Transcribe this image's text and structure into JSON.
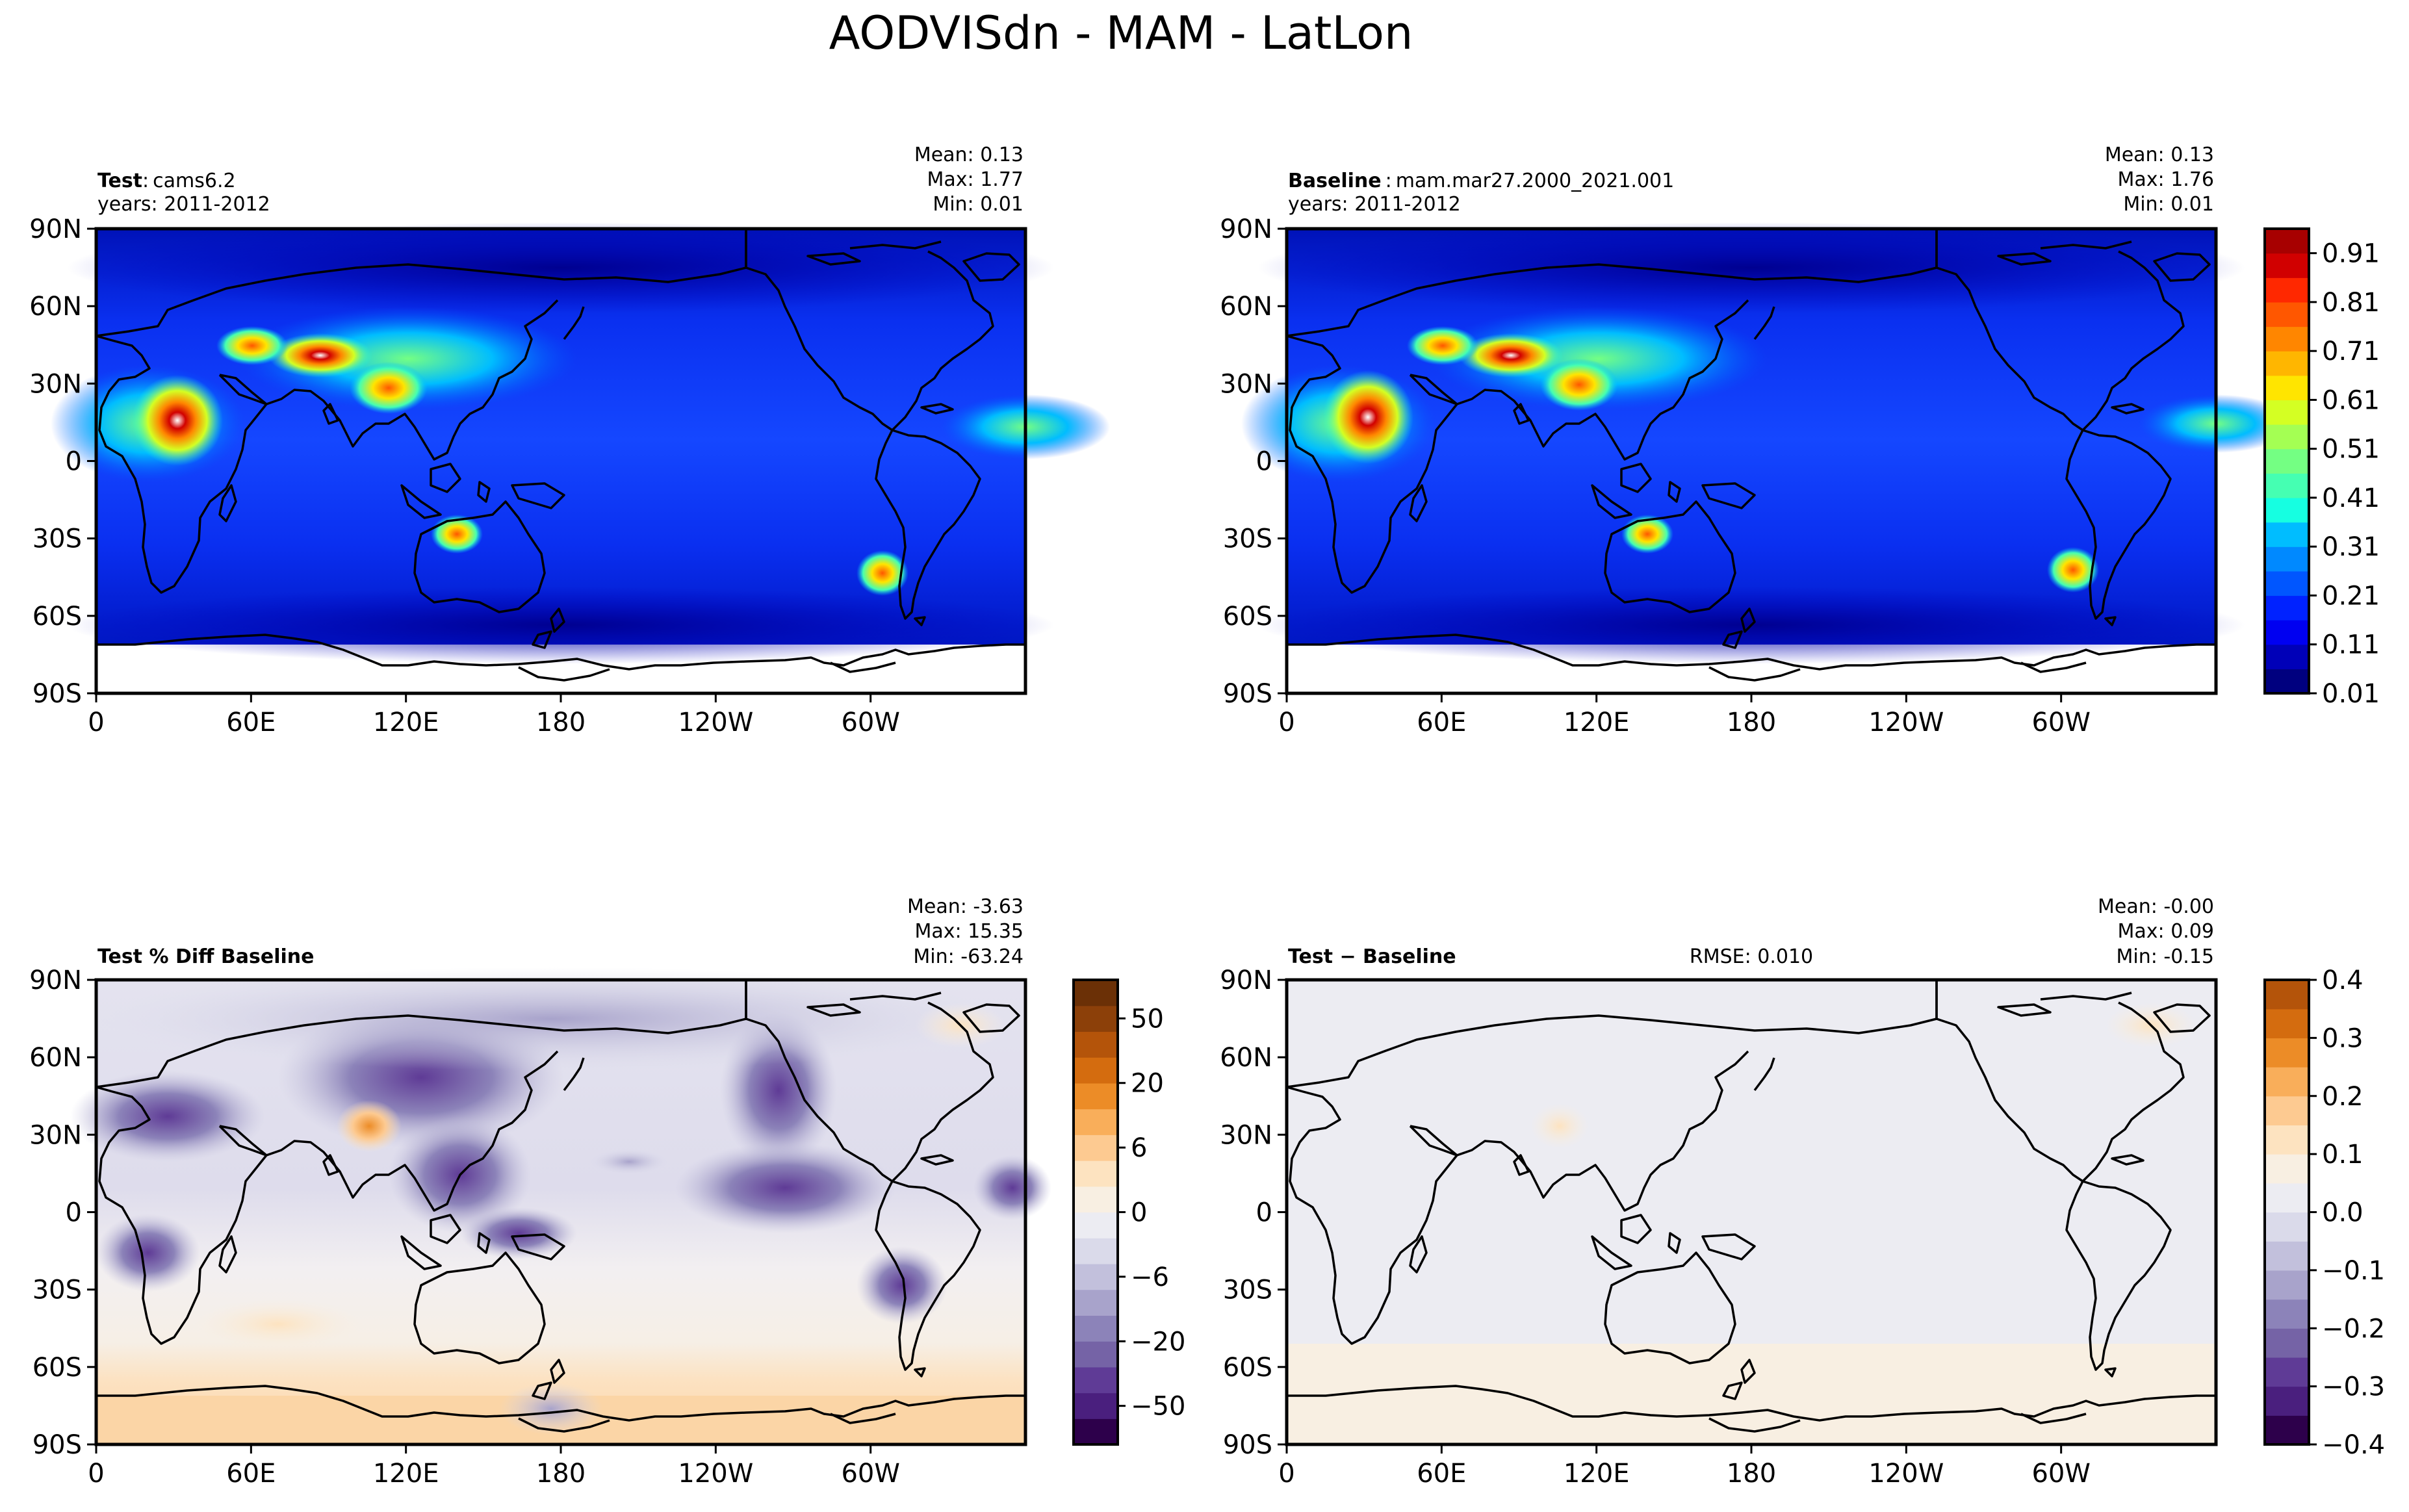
{
  "figure": {
    "title": "AODVISdn - MAM - LatLon"
  },
  "axes": {
    "lat_ticks": [
      "90N",
      "60N",
      "30N",
      "0",
      "30S",
      "60S",
      "90S"
    ],
    "lon_ticks": [
      "0",
      "60E",
      "120E",
      "180",
      "120W",
      "60W"
    ]
  },
  "chart_data": [
    {
      "type": "heatmap",
      "panel": "test",
      "label_bold": "Test",
      "label_sep": ":",
      "label_text": "cams6.2",
      "years": "years: 2011-2012",
      "stats": {
        "mean": "Mean:  0.13",
        "max": "Max:  1.77",
        "min": "Min:  0.01"
      },
      "xlabel": "",
      "ylabel": "",
      "xlim": [
        0,
        360
      ],
      "ylim": [
        -90,
        90
      ]
    },
    {
      "type": "heatmap",
      "panel": "baseline",
      "label_bold": "Baseline",
      "label_sep": ":",
      "label_text": "mam.mar27.2000_2021.001",
      "years": "years: 2011-2012",
      "stats": {
        "mean": "Mean:  0.13",
        "max": "Max:  1.76",
        "min": "Min:  0.01"
      },
      "xlabel": "",
      "ylabel": "",
      "xlim": [
        0,
        360
      ],
      "ylim": [
        -90,
        90
      ]
    },
    {
      "type": "heatmap",
      "panel": "pct_diff",
      "label_bold": "Test % Diff Baseline",
      "stats": {
        "mean": "Mean: -3.63",
        "max": "Max: 15.35",
        "min": "Min: -63.24"
      },
      "xlabel": "",
      "ylabel": "",
      "xlim": [
        0,
        360
      ],
      "ylim": [
        -90,
        90
      ]
    },
    {
      "type": "heatmap",
      "panel": "abs_diff",
      "label_bold": "Test − Baseline",
      "rmse": "RMSE: 0.010",
      "stats": {
        "mean": "Mean: -0.00",
        "max": "Max:  0.09",
        "min": "Min: -0.15"
      },
      "xlabel": "",
      "ylabel": "",
      "xlim": [
        0,
        360
      ],
      "ylim": [
        -90,
        90
      ]
    }
  ],
  "colorbars": {
    "aod": {
      "ticks": [
        "0.91",
        "0.81",
        "0.71",
        "0.61",
        "0.51",
        "0.41",
        "0.31",
        "0.21",
        "0.11",
        "0.01"
      ],
      "tick_values": [
        0.91,
        0.81,
        0.71,
        0.61,
        0.51,
        0.41,
        0.31,
        0.21,
        0.11,
        0.01
      ],
      "range": [
        0.01,
        0.96
      ],
      "colors": [
        "#00007f",
        "#0000b8",
        "#0000f1",
        "#0022ff",
        "#0056ff",
        "#0089ff",
        "#00bdff",
        "#16ffe1",
        "#45ffb2",
        "#74ff83",
        "#a4ff53",
        "#d4ff23",
        "#ffe500",
        "#ffb600",
        "#ff8600",
        "#ff5700",
        "#ff2800",
        "#d10000",
        "#a70000"
      ]
    },
    "pct": {
      "ticks": [
        "50",
        "20",
        "6",
        "0",
        "−6",
        "−20",
        "−50"
      ],
      "tick_fracs": [
        0.917,
        0.778,
        0.639,
        0.5,
        0.361,
        0.222,
        0.083
      ],
      "colors": [
        "#2d004b",
        "#4a1f7e",
        "#5f3b96",
        "#7563a6",
        "#8c83b9",
        "#a8a3cb",
        "#c2c0dc",
        "#dadaea",
        "#ececf2",
        "#f8efe2",
        "#fde3c0",
        "#fdca91",
        "#f9ae5a",
        "#ec8c27",
        "#d46c0f",
        "#b4540a",
        "#8c4009",
        "#6b3006"
      ]
    },
    "diff": {
      "ticks": [
        "0.4",
        "0.3",
        "0.2",
        "0.1",
        "0.0",
        "−0.1",
        "−0.2",
        "−0.3",
        "−0.4"
      ],
      "tick_values": [
        0.4,
        0.3,
        0.2,
        0.1,
        0.0,
        -0.1,
        -0.2,
        -0.3,
        -0.4
      ],
      "range": [
        -0.4,
        0.4
      ],
      "colors": [
        "#2d004b",
        "#4a1f7e",
        "#5f3b96",
        "#7563a6",
        "#8c83b9",
        "#a8a3cb",
        "#c2c0dc",
        "#dadaea",
        "#ececf2",
        "#f8efe2",
        "#fde3c0",
        "#fdca91",
        "#f9ae5a",
        "#ec8c27",
        "#d46c0f",
        "#b4540a"
      ]
    }
  }
}
